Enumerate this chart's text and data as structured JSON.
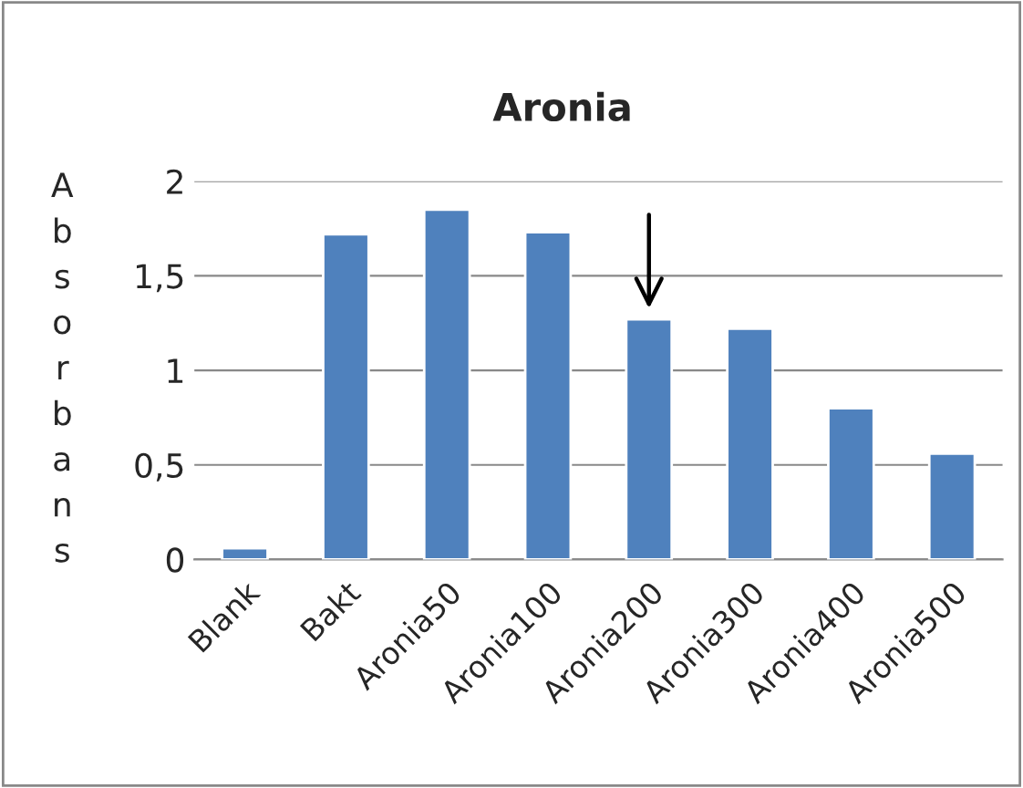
{
  "chart_data": {
    "type": "bar",
    "title": "Aronia",
    "ylabel": "Absorbans",
    "categories": [
      "Blank",
      "Bakt",
      "Aronia50",
      "Aronia100",
      "Aronia200",
      "Aronia300",
      "Aronia400",
      "Aronia500"
    ],
    "values": [
      0.06,
      1.72,
      1.85,
      1.73,
      1.27,
      1.22,
      0.8,
      0.56
    ],
    "color": "#4f81bd",
    "ylim": [
      0,
      2
    ],
    "yticks": [
      0,
      {
        "value": 0.5,
        "label": "0,5"
      },
      1,
      {
        "value": 1.5,
        "label": "1,5"
      },
      2
    ],
    "grid": "y",
    "legend": false
  }
}
